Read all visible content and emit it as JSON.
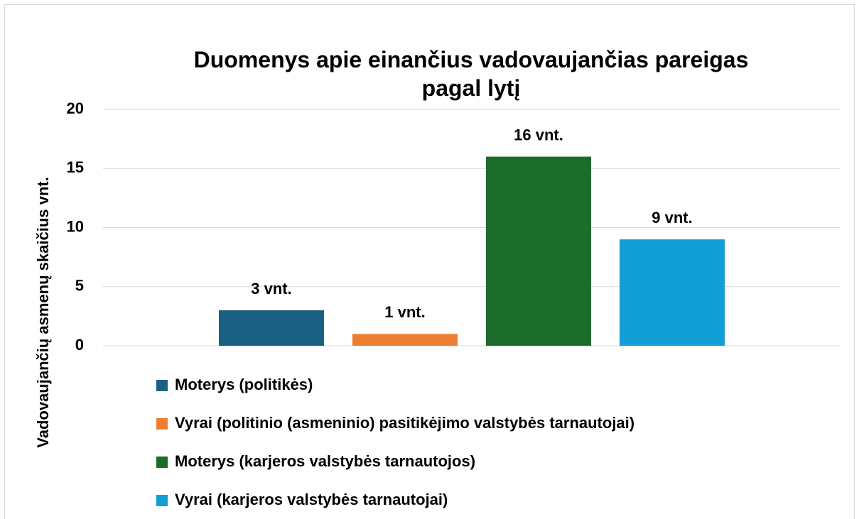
{
  "chart_data": {
    "type": "bar",
    "title": "Duomenys apie einančius vadovaujančias pareigas pagal lytį",
    "y_label": "Vadovaujančių asmenų skaičius vnt.",
    "categories": [
      null
    ],
    "series": [
      {
        "name": "Moterys (politikės)",
        "color": "#1b6183",
        "values": [
          3
        ],
        "value_labels": [
          "3 vnt."
        ]
      },
      {
        "name": "Vyrai (politinio (asmeninio) pasitikėjimo valstybės tarnautojai)",
        "color": "#ed7d31",
        "values": [
          1
        ],
        "value_labels": [
          "1 vnt."
        ]
      },
      {
        "name": "Moterys (karjeros valstybės tarnautojos)",
        "color": "#1c6d2a",
        "values": [
          16
        ],
        "value_labels": [
          "16 vnt."
        ]
      },
      {
        "name": "Vyrai (karjeros valstybės tarnautojai)",
        "color": "#119fd6",
        "values": [
          9
        ],
        "value_labels": [
          "9 vnt."
        ]
      }
    ],
    "ylim": [
      0,
      20
    ],
    "yticks": [
      0,
      5,
      10,
      15,
      20
    ],
    "grid": true,
    "legend": "bottom"
  }
}
